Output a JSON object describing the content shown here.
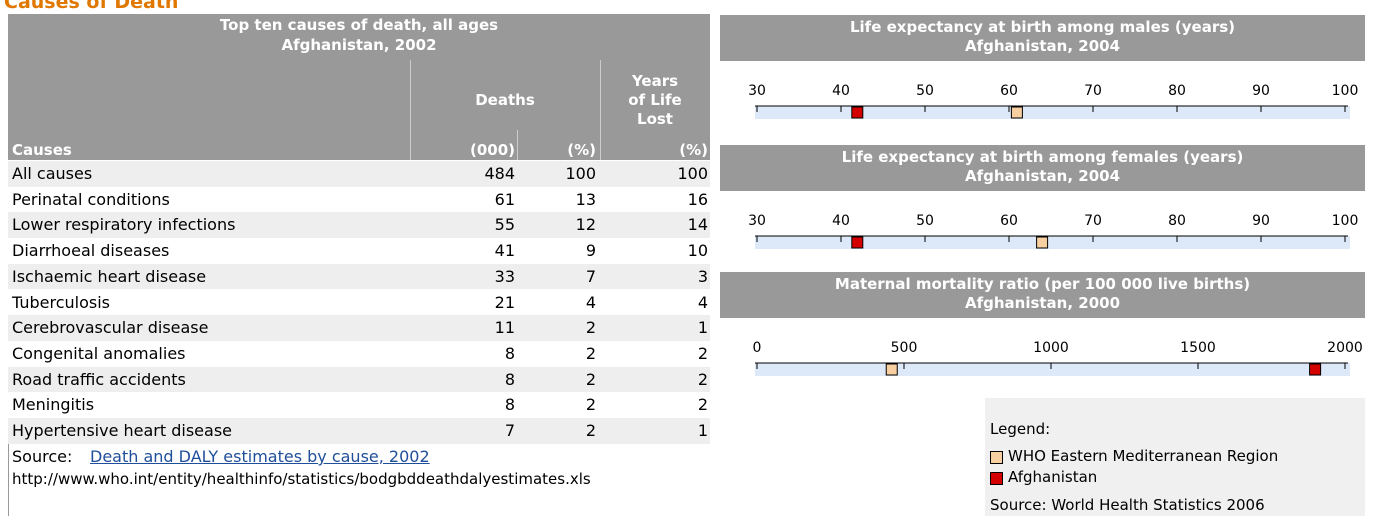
{
  "page_title": "Causes of Death",
  "table": {
    "title_lines": [
      "Top ten causes of death, all ages",
      "Afghanistan, 2002"
    ],
    "group_headers": [
      [
        "Deaths"
      ],
      [
        "Years",
        "of Life",
        "Lost"
      ]
    ],
    "columns": [
      "Causes",
      "(000)",
      "(%)",
      "(%)"
    ],
    "rows": [
      [
        "All causes",
        484,
        100,
        100
      ],
      [
        "Perinatal conditions",
        61,
        13,
        16
      ],
      [
        "Lower respiratory infections",
        55,
        12,
        14
      ],
      [
        "Diarrhoeal diseases",
        41,
        9,
        10
      ],
      [
        "Ischaemic heart disease",
        33,
        7,
        3
      ],
      [
        "Tuberculosis",
        21,
        4,
        4
      ],
      [
        "Cerebrovascular disease",
        11,
        2,
        1
      ],
      [
        "Congenital anomalies",
        8,
        2,
        2
      ],
      [
        "Road traffic accidents",
        8,
        2,
        2
      ],
      [
        "Meningitis",
        8,
        2,
        2
      ],
      [
        "Hypertensive heart disease",
        7,
        2,
        1
      ]
    ]
  },
  "source": {
    "prefix": "Source:",
    "link": "Death and DALY estimates by cause, 2002",
    "url": "http://www.who.int/entity/healthinfo/statistics/bodgbddeathdalyestimates.xls"
  },
  "legend": {
    "title": "Legend:",
    "items": [
      {
        "name": "WHO Eastern Mediterranean Region",
        "color": "#f8cfa0"
      },
      {
        "name": "Afghanistan",
        "color": "#d40000"
      }
    ],
    "source": "Source: World Health Statistics 2006"
  },
  "charts": [
    {
      "title_lines": [
        "Life expectancy at birth among males (years)",
        "Afghanistan, 2004"
      ],
      "xlim": [
        30,
        100
      ],
      "xticks": [
        30,
        40,
        50,
        60,
        70,
        80,
        90,
        100
      ],
      "values": [
        61,
        42
      ]
    },
    {
      "title_lines": [
        "Life expectancy at birth among females (years)",
        "Afghanistan, 2004"
      ],
      "xlim": [
        30,
        100
      ],
      "xticks": [
        30,
        40,
        50,
        60,
        70,
        80,
        90,
        100
      ],
      "values": [
        64,
        42
      ]
    },
    {
      "title_lines": [
        "Maternal mortality ratio (per 100 000 live births)",
        "Afghanistan, 2000"
      ],
      "xlim": [
        0,
        2000
      ],
      "xticks": [
        0,
        500,
        1000,
        1500,
        2000
      ],
      "values": [
        460,
        1900
      ]
    }
  ]
}
